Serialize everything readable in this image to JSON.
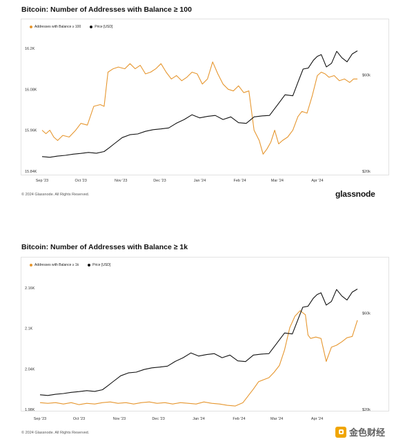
{
  "colors": {
    "balance": "#e6962e",
    "price": "#111111"
  },
  "footer_text": "© 2024 Glassnode. All Rights Reserved.",
  "brand": "glassnode",
  "watermark": {
    "text": "金色财经",
    "icon": "jinse-logo-icon"
  },
  "chart_data": [
    {
      "type": "line",
      "title": "Bitcoin: Number of Addresses with Balance ≥ 100",
      "series": [
        {
          "name": "Addresses with Balance ≥ 100",
          "axis": "left",
          "points": [
            [
              0,
              15960
            ],
            [
              3,
              15950
            ],
            [
              6,
              15960
            ],
            [
              9,
              15940
            ],
            [
              12,
              15930
            ],
            [
              16,
              15945
            ],
            [
              21,
              15940
            ],
            [
              26,
              15960
            ],
            [
              30,
              15980
            ],
            [
              35,
              15975
            ],
            [
              40,
              16030
            ],
            [
              45,
              16035
            ],
            [
              48,
              16030
            ],
            [
              51,
              16130
            ],
            [
              55,
              16140
            ],
            [
              59,
              16145
            ],
            [
              64,
              16140
            ],
            [
              68,
              16155
            ],
            [
              72,
              16140
            ],
            [
              76,
              16150
            ],
            [
              80,
              16125
            ],
            [
              84,
              16130
            ],
            [
              88,
              16140
            ],
            [
              92,
              16155
            ],
            [
              96,
              16130
            ],
            [
              100,
              16110
            ],
            [
              104,
              16120
            ],
            [
              108,
              16105
            ],
            [
              112,
              16115
            ],
            [
              116,
              16130
            ],
            [
              120,
              16125
            ],
            [
              124,
              16095
            ],
            [
              128,
              16110
            ],
            [
              132,
              16160
            ],
            [
              136,
              16125
            ],
            [
              140,
              16095
            ],
            [
              144,
              16080
            ],
            [
              148,
              16075
            ],
            [
              152,
              16090
            ],
            [
              156,
              16070
            ],
            [
              160,
              16075
            ],
            [
              164,
              15960
            ],
            [
              168,
              15930
            ],
            [
              171,
              15890
            ],
            [
              174,
              15905
            ],
            [
              177,
              15925
            ],
            [
              180,
              15960
            ],
            [
              183,
              15920
            ],
            [
              186,
              15930
            ],
            [
              190,
              15940
            ],
            [
              194,
              15960
            ],
            [
              198,
              16000
            ],
            [
              201,
              16015
            ],
            [
              205,
              16010
            ],
            [
              209,
              16060
            ],
            [
              213,
              16120
            ],
            [
              216,
              16130
            ],
            [
              219,
              16125
            ],
            [
              222,
              16115
            ],
            [
              226,
              16120
            ],
            [
              230,
              16105
            ],
            [
              234,
              16110
            ],
            [
              238,
              16100
            ],
            [
              241,
              16110
            ],
            [
              244,
              16110
            ]
          ]
        },
        {
          "name": "Price [USD]",
          "axis": "right",
          "points": [
            [
              0,
              26100
            ],
            [
              6,
              25800
            ],
            [
              12,
              26300
            ],
            [
              18,
              26600
            ],
            [
              24,
              27100
            ],
            [
              30,
              27400
            ],
            [
              36,
              27800
            ],
            [
              42,
              27500
            ],
            [
              48,
              28200
            ],
            [
              52,
              29800
            ],
            [
              56,
              31500
            ],
            [
              62,
              34000
            ],
            [
              68,
              35200
            ],
            [
              74,
              35500
            ],
            [
              80,
              36600
            ],
            [
              86,
              37300
            ],
            [
              92,
              37600
            ],
            [
              98,
              38000
            ],
            [
              104,
              40000
            ],
            [
              110,
              41500
            ],
            [
              116,
              43500
            ],
            [
              122,
              42200
            ],
            [
              128,
              42800
            ],
            [
              134,
              43200
            ],
            [
              140,
              41500
            ],
            [
              146,
              42600
            ],
            [
              152,
              40200
            ],
            [
              158,
              39900
            ],
            [
              164,
              42600
            ],
            [
              170,
              43000
            ],
            [
              176,
              43200
            ],
            [
              182,
              47500
            ],
            [
              188,
              51800
            ],
            [
              194,
              51400
            ],
            [
              198,
              57000
            ],
            [
              202,
              62500
            ],
            [
              206,
              62900
            ],
            [
              210,
              66200
            ],
            [
              213,
              67800
            ],
            [
              216,
              68500
            ],
            [
              220,
              63400
            ],
            [
              224,
              64900
            ],
            [
              228,
              69900
            ],
            [
              232,
              67200
            ],
            [
              236,
              65500
            ],
            [
              240,
              68800
            ],
            [
              244,
              70100
            ]
          ]
        }
      ],
      "legend": [
        "Addresses with Balance ≥ 100",
        "Price [USD]"
      ],
      "x_range_days": [
        0,
        244
      ],
      "x_ticks": [
        "Sep '23",
        "Oct '23",
        "Nov '23",
        "Dec '23",
        "Jan '24",
        "Feb '24",
        "Mar '24",
        "Apr '24"
      ],
      "y_left": {
        "ticks": [
          "16.2K",
          "16.08K",
          "15.96K",
          "15.84K"
        ],
        "tick_values": [
          16200,
          16080,
          15960,
          15840
        ],
        "ylim": [
          15840,
          16220
        ]
      },
      "y_right": {
        "ticks": [
          "$60k",
          "$20k"
        ],
        "tick_values": [
          60000,
          20000
        ],
        "ylim": [
          20000,
          74000
        ]
      }
    },
    {
      "type": "line",
      "title": "Bitcoin: Number of Addresses with Balance ≥ 1k",
      "series": [
        {
          "name": "Addresses with Balance ≥ 1k",
          "axis": "left",
          "points": [
            [
              0,
              1990
            ],
            [
              6,
              1989
            ],
            [
              12,
              1990
            ],
            [
              18,
              1988
            ],
            [
              24,
              1990
            ],
            [
              30,
              1987
            ],
            [
              36,
              1989
            ],
            [
              42,
              1988
            ],
            [
              48,
              1990
            ],
            [
              54,
              1991
            ],
            [
              60,
              1989
            ],
            [
              66,
              1990
            ],
            [
              72,
              1988
            ],
            [
              78,
              1990
            ],
            [
              84,
              1991
            ],
            [
              90,
              1989
            ],
            [
              96,
              1990
            ],
            [
              102,
              1988
            ],
            [
              108,
              1990
            ],
            [
              114,
              1989
            ],
            [
              120,
              1988
            ],
            [
              126,
              1991
            ],
            [
              132,
              1989
            ],
            [
              138,
              1988
            ],
            [
              144,
              1986
            ],
            [
              150,
              1985
            ],
            [
              156,
              1990
            ],
            [
              160,
              2000
            ],
            [
              164,
              2010
            ],
            [
              168,
              2021
            ],
            [
              172,
              2024
            ],
            [
              176,
              2027
            ],
            [
              180,
              2035
            ],
            [
              184,
              2045
            ],
            [
              188,
              2068
            ],
            [
              192,
              2101
            ],
            [
              196,
              2118
            ],
            [
              200,
              2126
            ],
            [
              204,
              2120
            ],
            [
              206,
              2090
            ],
            [
              208,
              2085
            ],
            [
              212,
              2087
            ],
            [
              216,
              2085
            ],
            [
              220,
              2051
            ],
            [
              224,
              2072
            ],
            [
              228,
              2075
            ],
            [
              232,
              2080
            ],
            [
              236,
              2086
            ],
            [
              240,
              2088
            ],
            [
              244,
              2112
            ]
          ]
        },
        {
          "name": "Price [USD]",
          "axis": "right",
          "points": [
            [
              0,
              26100
            ],
            [
              6,
              25800
            ],
            [
              12,
              26300
            ],
            [
              18,
              26600
            ],
            [
              24,
              27100
            ],
            [
              30,
              27400
            ],
            [
              36,
              27800
            ],
            [
              42,
              27500
            ],
            [
              48,
              28200
            ],
            [
              52,
              29800
            ],
            [
              56,
              31500
            ],
            [
              62,
              34000
            ],
            [
              68,
              35200
            ],
            [
              74,
              35500
            ],
            [
              80,
              36600
            ],
            [
              86,
              37300
            ],
            [
              92,
              37600
            ],
            [
              98,
              38000
            ],
            [
              104,
              40000
            ],
            [
              110,
              41500
            ],
            [
              116,
              43500
            ],
            [
              122,
              42200
            ],
            [
              128,
              42800
            ],
            [
              134,
              43200
            ],
            [
              140,
              41500
            ],
            [
              146,
              42600
            ],
            [
              152,
              40200
            ],
            [
              158,
              39900
            ],
            [
              164,
              42600
            ],
            [
              170,
              43000
            ],
            [
              176,
              43200
            ],
            [
              182,
              47500
            ],
            [
              188,
              51800
            ],
            [
              194,
              51400
            ],
            [
              198,
              57000
            ],
            [
              202,
              62500
            ],
            [
              206,
              62900
            ],
            [
              210,
              66200
            ],
            [
              213,
              67800
            ],
            [
              216,
              68500
            ],
            [
              220,
              63400
            ],
            [
              224,
              64900
            ],
            [
              228,
              69900
            ],
            [
              232,
              67200
            ],
            [
              236,
              65500
            ],
            [
              240,
              68800
            ],
            [
              244,
              70100
            ]
          ]
        }
      ],
      "legend": [
        "Addresses with Balance ≥ 1k",
        "Price [USD]"
      ],
      "x_range_days": [
        0,
        244
      ],
      "x_ticks": [
        "Sep '23",
        "Oct '23",
        "Nov '23",
        "Dec '23",
        "Jan '24",
        "Feb '24",
        "Mar '24",
        "Apr '24"
      ],
      "y_left": {
        "ticks": [
          "2.16K",
          "2.1K",
          "2.04K",
          "1.98K"
        ],
        "tick_values": [
          2160,
          2100,
          2040,
          1980
        ],
        "ylim": [
          1980,
          2172
        ]
      },
      "y_right": {
        "ticks": [
          "$60k",
          "$20k"
        ],
        "tick_values": [
          60000,
          20000
        ],
        "ylim": [
          20000,
          74000
        ]
      }
    }
  ]
}
